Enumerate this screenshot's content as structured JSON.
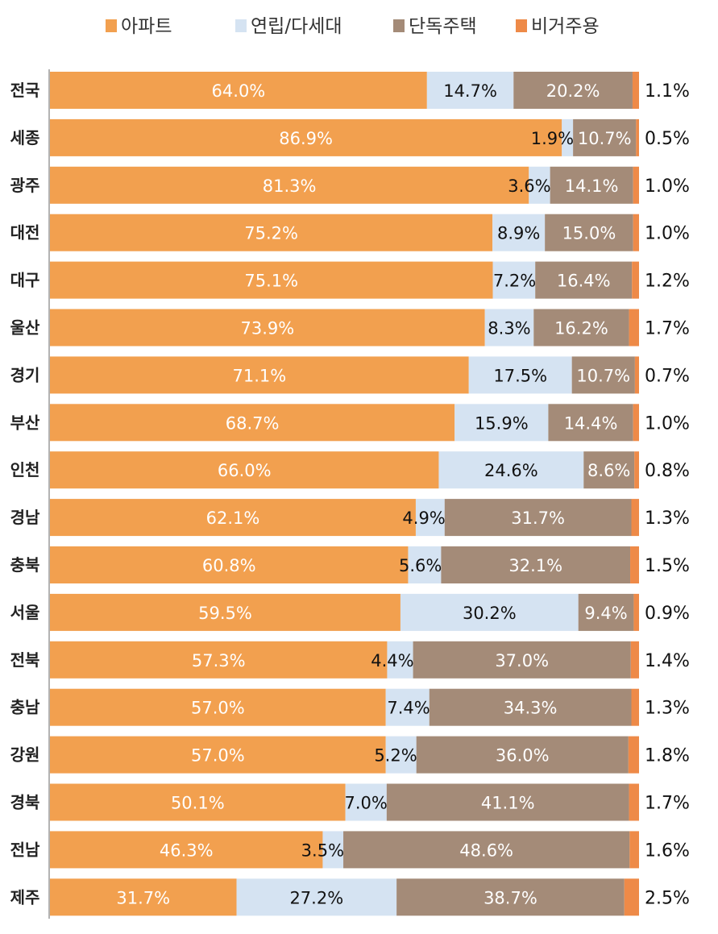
{
  "chart_data": {
    "type": "bar",
    "orientation": "horizontal",
    "stacked": true,
    "title": "",
    "xlabel": "",
    "ylabel": "",
    "xlim": [
      0,
      100
    ],
    "unit": "%",
    "grid": false,
    "legend_position": "top-center",
    "categories": [
      "전국",
      "세종",
      "광주",
      "대전",
      "대구",
      "울산",
      "경기",
      "부산",
      "인천",
      "경남",
      "충북",
      "서울",
      "전북",
      "충남",
      "강원",
      "경북",
      "전남",
      "제주"
    ],
    "series": [
      {
        "name": "아파트",
        "color": "#F2A04F",
        "label_color": "#FFFFFF",
        "values": [
          64.0,
          86.9,
          81.3,
          75.2,
          75.1,
          73.9,
          71.1,
          68.7,
          66.0,
          62.1,
          60.8,
          59.5,
          57.3,
          57.0,
          57.0,
          50.1,
          46.3,
          31.7
        ]
      },
      {
        "name": "연립/다세대",
        "color": "#D5E3F2",
        "label_color": "#111111",
        "values": [
          14.7,
          1.9,
          3.6,
          8.9,
          7.2,
          8.3,
          17.5,
          15.9,
          24.6,
          4.9,
          5.6,
          30.2,
          4.4,
          7.4,
          5.2,
          7.0,
          3.5,
          27.2
        ]
      },
      {
        "name": "단독주택",
        "color": "#A48B78",
        "label_color": "#FFFFFF",
        "values": [
          20.2,
          10.7,
          14.1,
          15.0,
          16.4,
          16.2,
          10.7,
          14.4,
          8.6,
          31.7,
          32.1,
          9.4,
          37.0,
          34.3,
          36.0,
          41.1,
          48.6,
          38.7
        ]
      },
      {
        "name": "비거주용",
        "color": "#EE8A48",
        "label_color": "#111111",
        "values": [
          1.1,
          0.5,
          1.0,
          1.0,
          1.2,
          1.7,
          0.7,
          1.0,
          0.8,
          1.3,
          1.5,
          0.9,
          1.4,
          1.3,
          1.8,
          1.7,
          1.6,
          2.5
        ]
      }
    ],
    "value_labels": {
      "아파트": [
        "64.0%",
        "86.9%",
        "81.3%",
        "75.2%",
        "75.1%",
        "73.9%",
        "71.1%",
        "68.7%",
        "66.0%",
        "62.1%",
        "60.8%",
        "59.5%",
        "57.3%",
        "57.0%",
        "57.0%",
        "50.1%",
        "46.3%",
        "31.7%"
      ],
      "연립/다세대": [
        "14.7%",
        "1.9%",
        "3.6%",
        "8.9%",
        "7.2%",
        "8.3%",
        "17.5%",
        "15.9%",
        "24.6%",
        "4.9%",
        "5.6%",
        "30.2%",
        "4.4%",
        "7.4%",
        "5.2%",
        "7.0%",
        "3.5%",
        "27.2%"
      ],
      "단독주택": [
        "20.2%",
        "10.7%",
        "14.1%",
        "15.0%",
        "16.4%",
        "16.2%",
        "10.7%",
        "14.4%",
        "8.6%",
        "31.7%",
        "32.1%",
        "9.4%",
        "37.0%",
        "34.3%",
        "36.0%",
        "41.1%",
        "48.6%",
        "38.7%"
      ],
      "비거주용": [
        "1.1%",
        "0.5%",
        "1.0%",
        "1.0%",
        "1.2%",
        "1.7%",
        "0.7%",
        "1.0%",
        "0.8%",
        "1.3%",
        "1.5%",
        "0.9%",
        "1.4%",
        "1.3%",
        "1.8%",
        "1.7%",
        "1.6%",
        "2.5%"
      ]
    }
  }
}
